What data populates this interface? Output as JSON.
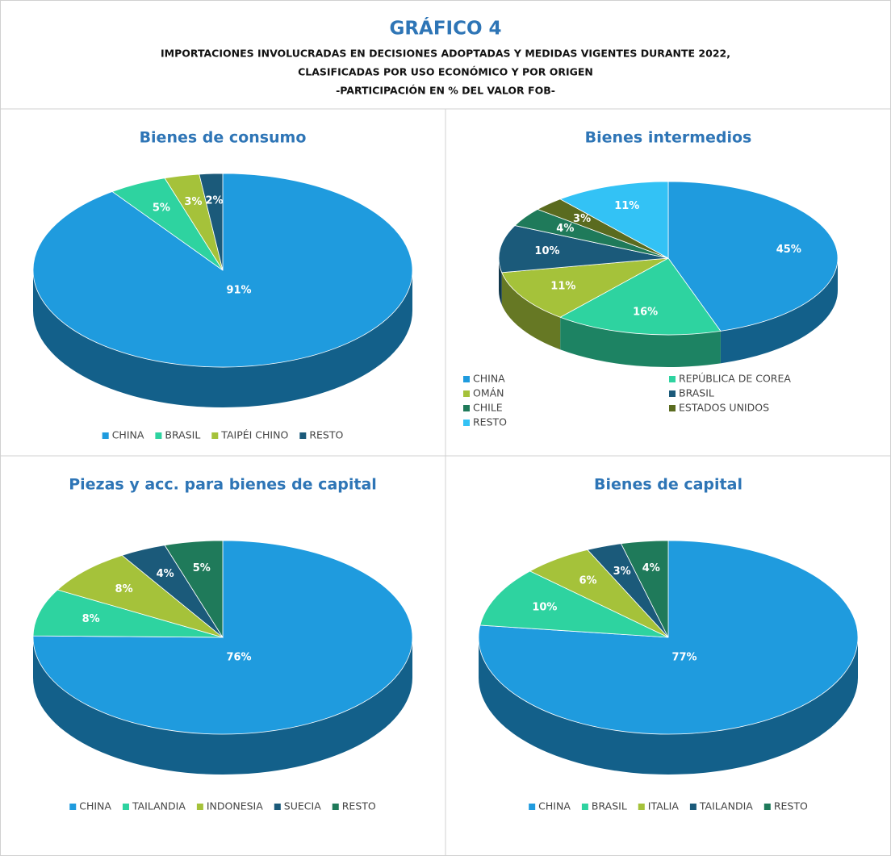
{
  "header": {
    "title": "GRÁFICO 4",
    "subtitle": [
      "IMPORTACIONES INVOLUCRADAS EN DECISIONES ADOPTADAS Y MEDIDAS VIGENTES DURANTE 2022,",
      "CLASIFICADAS POR USO ECONÓMICO Y POR ORIGEN",
      "-PARTICIPACIÓN EN % DEL VALOR FOB-"
    ]
  },
  "chart_data": [
    {
      "type": "pie",
      "title": "Bienes de consumo",
      "categories": [
        "CHINA",
        "BRASIL",
        "TAIPÉI CHINO",
        "RESTO"
      ],
      "values": [
        91,
        5,
        3,
        2
      ],
      "value_labels": [
        "91%",
        "5%",
        "3%",
        "2%"
      ],
      "colors": [
        "#1f9bde",
        "#2ed3a0",
        "#a5c23a",
        "#1b5a7a"
      ],
      "legend": "bottom"
    },
    {
      "type": "pie",
      "title": "Bienes intermedios",
      "categories": [
        "CHINA",
        "REPÚBLICA DE COREA",
        "OMÁN",
        "BRASIL",
        "CHILE",
        "ESTADOS UNIDOS",
        "RESTO"
      ],
      "values": [
        45,
        16,
        11,
        10,
        4,
        3,
        11
      ],
      "value_labels": [
        "45%",
        "16%",
        "11%",
        "10%",
        "4%",
        "3%",
        "11%"
      ],
      "colors": [
        "#1f9bde",
        "#2ed3a0",
        "#a5c23a",
        "#1b5a7a",
        "#1f7a5a",
        "#5a6b1f",
        "#33c2f5"
      ],
      "legend": "bottom"
    },
    {
      "type": "pie",
      "title": "Piezas y acc. para bienes de capital",
      "categories": [
        "CHINA",
        "TAILANDIA",
        "INDONESIA",
        "SUECIA",
        "RESTO"
      ],
      "values": [
        76,
        8,
        8,
        4,
        5
      ],
      "value_labels": [
        "76%",
        "8%",
        "8%",
        "4%",
        "5%"
      ],
      "colors": [
        "#1f9bde",
        "#2ed3a0",
        "#a5c23a",
        "#1b5a7a",
        "#1f7a5a"
      ],
      "legend": "bottom"
    },
    {
      "type": "pie",
      "title": "Bienes de capital",
      "categories": [
        "CHINA",
        "BRASIL",
        "ITALIA",
        "TAILANDIA",
        "RESTO"
      ],
      "values": [
        77,
        10,
        6,
        3,
        4
      ],
      "value_labels": [
        "77%",
        "10%",
        "6%",
        "3%",
        "4%"
      ],
      "colors": [
        "#1f9bde",
        "#2ed3a0",
        "#a5c23a",
        "#1b5a7a",
        "#1f7a5a"
      ],
      "legend": "bottom"
    }
  ]
}
